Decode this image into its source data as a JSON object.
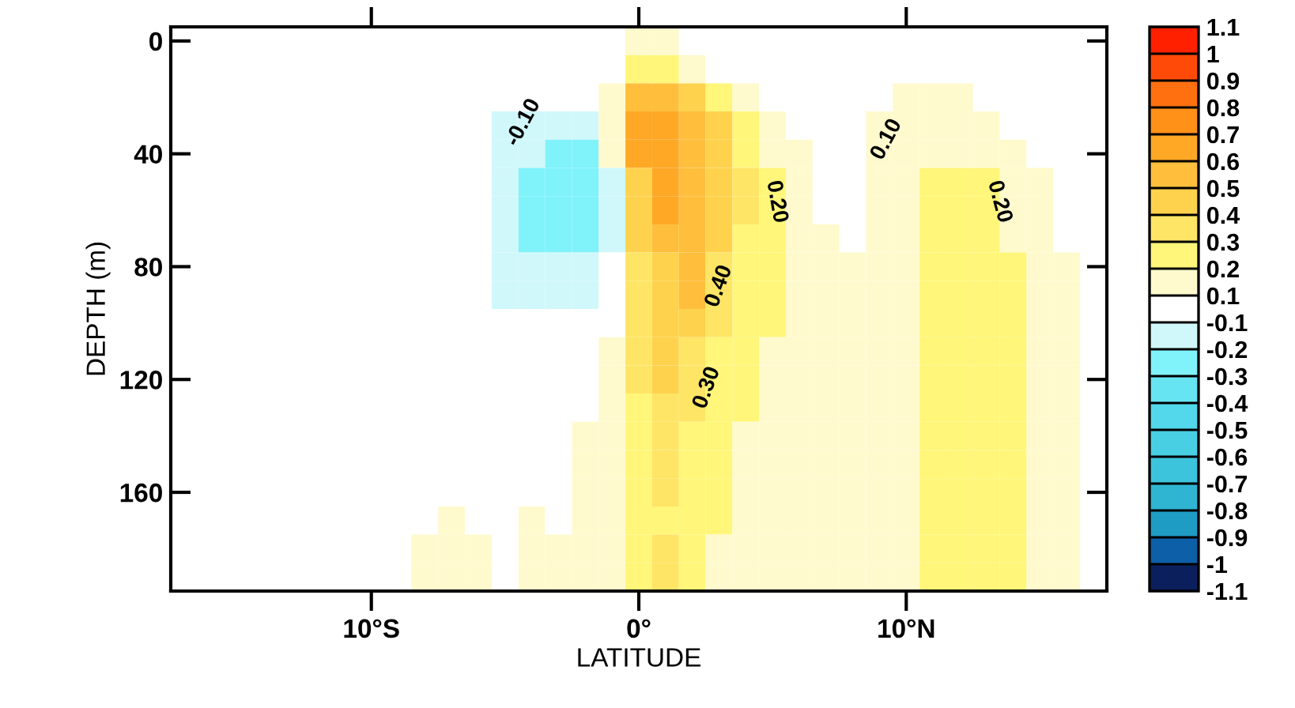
{
  "chart_data": {
    "type": "heatmap",
    "xlabel": "LATITUDE",
    "ylabel": "DEPTH (m)",
    "categories": [
      null,
      null,
      null,
      null,
      null,
      null,
      null,
      "10°S",
      null,
      null,
      null,
      null,
      null,
      null,
      null,
      null,
      null,
      "0°",
      null,
      null,
      null,
      null,
      null,
      null,
      null,
      null,
      null,
      "10°N",
      null,
      null,
      null,
      null,
      null,
      null,
      null
    ],
    "y_categories": [
      "0",
      null,
      null,
      null,
      "40",
      null,
      null,
      null,
      "80",
      null,
      null,
      null,
      "120",
      null,
      null,
      null,
      "160",
      null,
      null,
      null
    ],
    "clim": [
      -1.1,
      1.1
    ],
    "cticks": [
      -1.1,
      -1,
      -0.9,
      -0.8,
      -0.7,
      -0.6,
      -0.5,
      -0.4,
      -0.3,
      -0.2,
      -0.1,
      0.1,
      0.2,
      0.3,
      0.4,
      0.5,
      0.6,
      0.7,
      0.8,
      0.9,
      1,
      1.1
    ],
    "cells": [
      [
        0,
        0,
        0,
        0,
        0,
        0,
        0,
        0,
        0,
        0,
        0,
        0,
        0,
        0,
        0,
        0,
        0,
        0.15,
        0.15,
        0,
        0,
        0,
        0,
        0,
        0,
        0,
        0,
        0,
        0,
        0,
        0,
        0,
        0,
        0,
        0
      ],
      [
        0,
        0,
        0,
        0,
        0,
        0,
        0,
        0,
        0,
        0,
        0,
        0,
        0,
        0,
        0,
        0,
        0,
        0.25,
        0.25,
        0.15,
        0,
        0,
        0,
        0,
        0,
        0,
        0,
        0,
        0,
        0,
        0,
        0,
        0,
        0,
        0
      ],
      [
        0,
        0,
        0,
        0,
        0,
        0,
        0,
        0,
        0,
        0,
        0,
        0,
        0,
        0,
        0,
        0,
        0.15,
        0.55,
        0.55,
        0.45,
        0.25,
        0.15,
        0,
        0,
        0,
        0,
        0,
        0.15,
        0.15,
        0.15,
        0,
        0,
        0,
        0,
        0
      ],
      [
        0,
        0,
        0,
        0,
        0,
        0,
        0,
        0,
        0,
        0,
        0,
        0,
        -0.15,
        -0.15,
        -0.15,
        -0.15,
        0.15,
        0.65,
        0.65,
        0.55,
        0.45,
        0.25,
        0.15,
        0,
        0,
        0,
        0.15,
        0.15,
        0.15,
        0.15,
        0.15,
        0,
        0,
        0,
        0
      ],
      [
        0,
        0,
        0,
        0,
        0,
        0,
        0,
        0,
        0,
        0,
        0,
        0,
        -0.15,
        -0.15,
        -0.25,
        -0.25,
        0.15,
        0.65,
        0.65,
        0.55,
        0.45,
        0.25,
        0.15,
        0.15,
        0,
        0,
        0.15,
        0.15,
        0.15,
        0.15,
        0.15,
        0.15,
        0,
        0,
        0
      ],
      [
        0,
        0,
        0,
        0,
        0,
        0,
        0,
        0,
        0,
        0,
        0,
        0,
        -0.15,
        -0.25,
        -0.25,
        -0.25,
        -0.15,
        0.45,
        0.65,
        0.55,
        0.45,
        0.35,
        0.25,
        0.15,
        0,
        0,
        0.15,
        0.15,
        0.25,
        0.25,
        0.25,
        0.15,
        0.15,
        0,
        0
      ],
      [
        0,
        0,
        0,
        0,
        0,
        0,
        0,
        0,
        0,
        0,
        0,
        0,
        -0.15,
        -0.25,
        -0.25,
        -0.25,
        -0.15,
        0.45,
        0.65,
        0.55,
        0.45,
        0.35,
        0.25,
        0.15,
        0,
        0,
        0.15,
        0.15,
        0.25,
        0.25,
        0.25,
        0.15,
        0.15,
        0,
        0
      ],
      [
        0,
        0,
        0,
        0,
        0,
        0,
        0,
        0,
        0,
        0,
        0,
        0,
        -0.15,
        -0.25,
        -0.25,
        -0.25,
        -0.15,
        0.45,
        0.55,
        0.55,
        0.45,
        0.25,
        0.25,
        0.15,
        0.15,
        0,
        0.15,
        0.15,
        0.25,
        0.25,
        0.25,
        0.15,
        0.15,
        0,
        0
      ],
      [
        0,
        0,
        0,
        0,
        0,
        0,
        0,
        0,
        0,
        0,
        0,
        0,
        -0.15,
        -0.15,
        -0.15,
        -0.15,
        0,
        0.35,
        0.45,
        0.55,
        0.35,
        0.25,
        0.25,
        0.15,
        0.15,
        0.15,
        0.15,
        0.15,
        0.25,
        0.25,
        0.25,
        0.25,
        0.15,
        0.15,
        0
      ],
      [
        0,
        0,
        0,
        0,
        0,
        0,
        0,
        0,
        0,
        0,
        0,
        0,
        -0.15,
        -0.15,
        -0.15,
        -0.15,
        0,
        0.35,
        0.45,
        0.55,
        0.35,
        0.25,
        0.25,
        0.15,
        0.15,
        0.15,
        0.15,
        0.15,
        0.25,
        0.25,
        0.25,
        0.25,
        0.15,
        0.15,
        0
      ],
      [
        0,
        0,
        0,
        0,
        0,
        0,
        0,
        0,
        0,
        0,
        0,
        0,
        0,
        0,
        0,
        0,
        0,
        0.35,
        0.45,
        0.45,
        0.35,
        0.25,
        0.25,
        0.15,
        0.15,
        0.15,
        0.15,
        0.15,
        0.25,
        0.25,
        0.25,
        0.25,
        0.15,
        0.15,
        0
      ],
      [
        0,
        0,
        0,
        0,
        0,
        0,
        0,
        0,
        0,
        0,
        0,
        0,
        0,
        0,
        0,
        0,
        0.15,
        0.35,
        0.45,
        0.35,
        0.25,
        0.25,
        0.15,
        0.15,
        0.15,
        0.15,
        0.15,
        0.15,
        0.25,
        0.25,
        0.25,
        0.25,
        0.15,
        0.15,
        0
      ],
      [
        0,
        0,
        0,
        0,
        0,
        0,
        0,
        0,
        0,
        0,
        0,
        0,
        0,
        0,
        0,
        0,
        0.15,
        0.35,
        0.45,
        0.35,
        0.25,
        0.25,
        0.15,
        0.15,
        0.15,
        0.15,
        0.15,
        0.15,
        0.25,
        0.25,
        0.25,
        0.25,
        0.15,
        0.15,
        0
      ],
      [
        0,
        0,
        0,
        0,
        0,
        0,
        0,
        0,
        0,
        0,
        0,
        0,
        0,
        0,
        0,
        0,
        0.15,
        0.25,
        0.35,
        0.35,
        0.25,
        0.25,
        0.15,
        0.15,
        0.15,
        0.15,
        0.15,
        0.15,
        0.25,
        0.25,
        0.25,
        0.25,
        0.15,
        0.15,
        0
      ],
      [
        0,
        0,
        0,
        0,
        0,
        0,
        0,
        0,
        0,
        0,
        0,
        0,
        0,
        0,
        0,
        0.15,
        0.15,
        0.25,
        0.35,
        0.25,
        0.25,
        0.15,
        0.15,
        0.15,
        0.15,
        0.15,
        0.15,
        0.15,
        0.25,
        0.25,
        0.25,
        0.25,
        0.15,
        0.15,
        0
      ],
      [
        0,
        0,
        0,
        0,
        0,
        0,
        0,
        0,
        0,
        0,
        0,
        0,
        0,
        0,
        0,
        0.15,
        0.15,
        0.25,
        0.35,
        0.25,
        0.25,
        0.15,
        0.15,
        0.15,
        0.15,
        0.15,
        0.15,
        0.15,
        0.25,
        0.25,
        0.25,
        0.25,
        0.15,
        0.15,
        0
      ],
      [
        0,
        0,
        0,
        0,
        0,
        0,
        0,
        0,
        0,
        0,
        0,
        0,
        0,
        0,
        0,
        0.15,
        0.15,
        0.25,
        0.35,
        0.25,
        0.25,
        0.15,
        0.15,
        0.15,
        0.15,
        0.15,
        0.15,
        0.15,
        0.25,
        0.25,
        0.25,
        0.25,
        0.15,
        0.15,
        0
      ],
      [
        0,
        0,
        0,
        0,
        0,
        0,
        0,
        0,
        0,
        0,
        0.15,
        0,
        0,
        0.15,
        0,
        0.15,
        0.15,
        0.25,
        0.25,
        0.25,
        0.25,
        0.15,
        0.15,
        0.15,
        0.15,
        0.15,
        0.15,
        0.15,
        0.25,
        0.25,
        0.25,
        0.25,
        0.15,
        0.15,
        0
      ],
      [
        0,
        0,
        0,
        0,
        0,
        0,
        0,
        0,
        0,
        0.15,
        0.15,
        0.15,
        0,
        0.15,
        0.15,
        0.15,
        0.15,
        0.25,
        0.35,
        0.25,
        0.15,
        0.15,
        0.15,
        0.15,
        0.15,
        0.15,
        0.15,
        0.15,
        0.25,
        0.25,
        0.25,
        0.25,
        0.15,
        0.15,
        0
      ],
      [
        0,
        0,
        0,
        0,
        0,
        0,
        0,
        0,
        0,
        0.15,
        0.15,
        0.15,
        0,
        0.15,
        0.15,
        0.15,
        0.15,
        0.25,
        0.35,
        0.25,
        0.15,
        0.15,
        0.15,
        0.15,
        0.15,
        0.15,
        0.15,
        0.15,
        0.25,
        0.25,
        0.25,
        0.25,
        0.15,
        0.15,
        0
      ]
    ],
    "annotations": [
      "-0.10",
      "0.10",
      "0.20",
      "0.20",
      "0.40",
      "0.30"
    ]
  }
}
